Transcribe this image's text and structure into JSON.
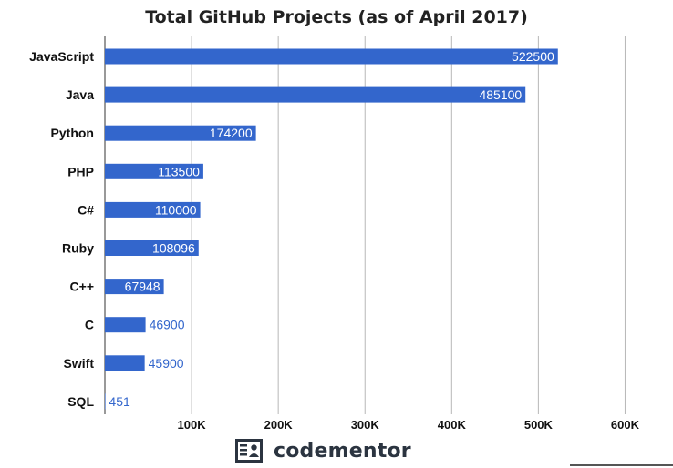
{
  "chart_data": {
    "type": "bar",
    "orientation": "horizontal",
    "title": "Total GitHub Projects (as of April 2017)",
    "categories": [
      "JavaScript",
      "Java",
      "Python",
      "PHP",
      "C#",
      "Ruby",
      "C++",
      "C",
      "Swift",
      "SQL"
    ],
    "values": [
      522500,
      485100,
      174200,
      113500,
      110000,
      108096,
      67948,
      46900,
      45900,
      451
    ],
    "data_labels": [
      "522500",
      "485100",
      "174200",
      "113500",
      "110000",
      "108096",
      "67948",
      "46900",
      "45900",
      "451"
    ],
    "x_ticks": [
      100000,
      200000,
      300000,
      400000,
      500000,
      600000
    ],
    "x_tick_labels": [
      "100K",
      "200K",
      "300K",
      "400K",
      "500K",
      "600K"
    ],
    "xlim": [
      0,
      650000
    ],
    "xlabel": "",
    "ylabel": "",
    "grid": true,
    "legend": "none",
    "bar_color": "#3366cc"
  },
  "branding": {
    "logo_text": "codementor",
    "logo_icon": "codementor-logo-icon",
    "logo_color": "#2b3440"
  }
}
